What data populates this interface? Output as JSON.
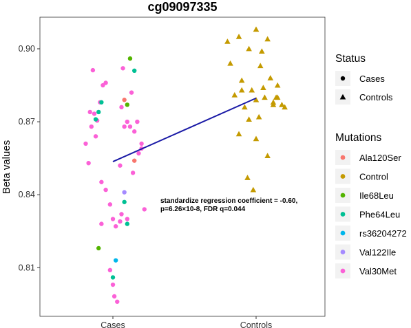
{
  "chart_data": {
    "type": "scatter",
    "title": "cg09097335",
    "xlabel": "",
    "ylabel": "Beta values",
    "categories": [
      "Cases",
      "Controls"
    ],
    "ylim": [
      0.79,
      0.913
    ],
    "y_ticks": [
      0.81,
      0.84,
      0.87,
      0.9
    ],
    "y_tick_labels": [
      "0.81",
      "0.84",
      "0.87",
      "0.90"
    ],
    "grid": false,
    "legend_status": {
      "title": "Status",
      "items": [
        {
          "label": "Cases",
          "shape": "circle"
        },
        {
          "label": "Controls",
          "shape": "triangle"
        }
      ]
    },
    "legend_mutations": {
      "title": "Mutations",
      "items": [
        {
          "label": "Ala120Ser",
          "color": "#F8766D"
        },
        {
          "label": "Control",
          "color": "#C49A00"
        },
        {
          "label": "Ile68Leu",
          "color": "#53B400"
        },
        {
          "label": "Phe64Leu",
          "color": "#00C094"
        },
        {
          "label": "rs36204272",
          "color": "#00B6EB"
        },
        {
          "label": "Val122Ile",
          "color": "#A58AFF"
        },
        {
          "label": "Val30Met",
          "color": "#FB61D7"
        }
      ]
    },
    "regression": {
      "x": [
        1,
        2
      ],
      "y": [
        0.8536,
        0.8797
      ],
      "color": "#1a1aa6"
    },
    "annotation": [
      "standardize regression coefficient = -0.60,",
      "p=6.26×10-8, FDR q=0.044"
    ],
    "series": [
      {
        "name": "Val30Met",
        "group": "Cases",
        "shape": "circle",
        "color": "#FB61D7",
        "x": [
          0.86,
          0.91,
          0.87,
          0.84,
          0.89,
          0.85,
          0.88,
          0.81,
          0.83,
          0.92,
          0.95,
          0.98,
          1.0,
          1.02,
          1.05,
          1.06,
          1.08,
          1.12,
          1.15,
          1.1,
          1.17,
          1.2,
          1.18,
          1.14,
          1.22,
          0.93,
          1.0,
          1.07,
          1.13,
          1.2,
          0.92,
          0.98,
          1.01,
          1.05,
          1.1,
          0.95,
          1.03,
          1.06
        ],
        "y": [
          0.8912,
          0.878,
          0.8733,
          0.874,
          0.8705,
          0.868,
          0.864,
          0.861,
          0.853,
          0.8452,
          0.842,
          0.836,
          0.83,
          0.827,
          0.829,
          0.832,
          0.868,
          0.868,
          0.866,
          0.87,
          0.87,
          0.861,
          0.857,
          0.849,
          0.834,
          0.885,
          0.803,
          0.892,
          0.882,
          0.859,
          0.828,
          0.809,
          0.7982,
          0.852,
          0.83,
          0.886,
          0.796,
          0.876
        ]
      },
      {
        "name": "Phe64Leu",
        "group": "Cases",
        "shape": "circle",
        "color": "#00C094",
        "x": [
          0.88,
          0.9,
          0.92,
          1.0,
          1.08,
          1.1,
          1.15
        ],
        "y": [
          0.871,
          0.874,
          0.878,
          0.806,
          0.837,
          0.828,
          0.891
        ]
      },
      {
        "name": "Ile68Leu",
        "group": "Cases",
        "shape": "circle",
        "color": "#53B400",
        "x": [
          0.9,
          1.1,
          1.12
        ],
        "y": [
          0.818,
          0.877,
          0.896
        ]
      },
      {
        "name": "Ala120Ser",
        "group": "Cases",
        "shape": "circle",
        "color": "#F8766D",
        "x": [
          1.08,
          1.15
        ],
        "y": [
          0.879,
          0.854
        ]
      },
      {
        "name": "rs36204272",
        "group": "Cases",
        "shape": "circle",
        "color": "#00B6EB",
        "x": [
          1.02
        ],
        "y": [
          0.813
        ]
      },
      {
        "name": "Val122Ile",
        "group": "Cases",
        "shape": "circle",
        "color": "#A58AFF",
        "x": [
          1.08
        ],
        "y": [
          0.841
        ]
      },
      {
        "name": "Control",
        "group": "Controls",
        "shape": "triangle",
        "color": "#C49A00",
        "x": [
          1.8,
          1.88,
          1.95,
          2.0,
          2.08,
          2.15,
          1.82,
          1.9,
          1.97,
          2.03,
          2.1,
          2.18,
          1.85,
          1.92,
          2.0,
          2.05,
          2.12,
          2.2,
          1.88,
          1.95,
          2.02,
          2.08,
          2.15,
          1.9,
          2.0,
          2.06,
          2.14,
          1.94,
          1.98,
          2.04,
          2.12
        ],
        "y": [
          0.903,
          0.905,
          0.9,
          0.908,
          0.904,
          0.885,
          0.894,
          0.887,
          0.883,
          0.893,
          0.888,
          0.877,
          0.881,
          0.876,
          0.879,
          0.884,
          0.878,
          0.876,
          0.865,
          0.871,
          0.872,
          0.856,
          0.88,
          0.883,
          0.863,
          0.88,
          0.88,
          0.847,
          0.842,
          0.899,
          0.877
        ]
      }
    ]
  }
}
